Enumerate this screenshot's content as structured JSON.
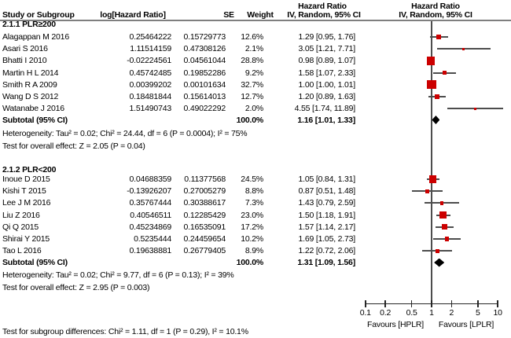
{
  "figure": {
    "header": {
      "hazard_ratio_col_title": "Hazard Ratio",
      "hazard_ratio_plot_title": "Hazard Ratio",
      "study": "Study or Subgroup",
      "loghr": "log[Hazard Ratio]",
      "se": "SE",
      "weight": "Weight",
      "ci": "IV, Random, 95% CI",
      "ci_plot": "IV, Random, 95% CI"
    }
  },
  "chart_data": {
    "type": "forest",
    "effect_measure": "Hazard Ratio",
    "model": "IV, Random, 95% CI",
    "axis": {
      "scale": "log",
      "min": 0.1,
      "max": 10,
      "ticks": [
        0.1,
        0.2,
        0.5,
        1,
        2,
        5,
        10
      ],
      "tick_labels": [
        "0.1",
        "0.2",
        "0.5",
        "1",
        "2",
        "5",
        "10"
      ],
      "favours_left": "Favours [HPLR]",
      "favours_right": "Favours [LPLR]"
    },
    "groups": [
      {
        "label": "2.1.1 PLR≥200",
        "studies": [
          {
            "name": "Alagappan M 2016",
            "loghr": "0.25464222",
            "se": "0.15729773",
            "weight": "12.6%",
            "weight_val": 12.6,
            "ci_text": "1.29 [0.95, 1.76]",
            "hr": 1.29,
            "lo": 0.95,
            "hi": 1.76
          },
          {
            "name": "Asari S 2016",
            "loghr": "1.11514159",
            "se": "0.47308126",
            "weight": "2.1%",
            "weight_val": 2.1,
            "ci_text": "3.05 [1.21, 7.71]",
            "hr": 3.05,
            "lo": 1.21,
            "hi": 7.71
          },
          {
            "name": "Bhatti I 2010",
            "loghr": "-0.02224561",
            "se": "0.04561044",
            "weight": "28.8%",
            "weight_val": 28.8,
            "ci_text": "0.98 [0.89, 1.07]",
            "hr": 0.98,
            "lo": 0.89,
            "hi": 1.07
          },
          {
            "name": "Martin H L 2014",
            "loghr": "0.45742485",
            "se": "0.19852286",
            "weight": "9.2%",
            "weight_val": 9.2,
            "ci_text": "1.58 [1.07, 2.33]",
            "hr": 1.58,
            "lo": 1.07,
            "hi": 2.33
          },
          {
            "name": "Smith R A 2009",
            "loghr": "0.00399202",
            "se": "0.00101634",
            "weight": "32.7%",
            "weight_val": 32.7,
            "ci_text": "1.00 [1.00, 1.01]",
            "hr": 1.0,
            "lo": 1.0,
            "hi": 1.01
          },
          {
            "name": "Wang D S 2012",
            "loghr": "0.18481844",
            "se": "0.15614013",
            "weight": "12.7%",
            "weight_val": 12.7,
            "ci_text": "1.20 [0.89, 1.63]",
            "hr": 1.2,
            "lo": 0.89,
            "hi": 1.63
          },
          {
            "name": "Watanabe J 2016",
            "loghr": "1.51490743",
            "se": "0.49022292",
            "weight": "2.0%",
            "weight_val": 2.0,
            "ci_text": "4.55 [1.74, 11.89]",
            "hr": 4.55,
            "lo": 1.74,
            "hi": 11.89
          }
        ],
        "subtotal": {
          "name": "Subtotal (95% CI)",
          "weight": "100.0%",
          "ci_text": "1.16 [1.01, 1.33]",
          "hr": 1.16,
          "lo": 1.01,
          "hi": 1.33
        },
        "heterogeneity": "Heterogeneity: Tau² = 0.02; Chi² = 24.44, df = 6 (P = 0.0004); I² = 75%",
        "overall_effect": "Test for overall effect: Z = 2.05 (P = 0.04)"
      },
      {
        "label": "2.1.2 PLR<200",
        "studies": [
          {
            "name": "Inoue D 2015",
            "loghr": "0.04688359",
            "se": "0.11377568",
            "weight": "24.5%",
            "weight_val": 24.5,
            "ci_text": "1.05 [0.84, 1.31]",
            "hr": 1.05,
            "lo": 0.84,
            "hi": 1.31
          },
          {
            "name": "Kishi T 2015",
            "loghr": "-0.13926207",
            "se": "0.27005279",
            "weight": "8.8%",
            "weight_val": 8.8,
            "ci_text": "0.87 [0.51, 1.48]",
            "hr": 0.87,
            "lo": 0.51,
            "hi": 1.48
          },
          {
            "name": "Lee J M 2016",
            "loghr": "0.35767444",
            "se": "0.30388617",
            "weight": "7.3%",
            "weight_val": 7.3,
            "ci_text": "1.43 [0.79, 2.59]",
            "hr": 1.43,
            "lo": 0.79,
            "hi": 2.59
          },
          {
            "name": "Liu Z 2016",
            "loghr": "0.40546511",
            "se": "0.12285429",
            "weight": "23.0%",
            "weight_val": 23.0,
            "ci_text": "1.50 [1.18, 1.91]",
            "hr": 1.5,
            "lo": 1.18,
            "hi": 1.91
          },
          {
            "name": "Qi Q 2015",
            "loghr": "0.45234869",
            "se": "0.16535091",
            "weight": "17.2%",
            "weight_val": 17.2,
            "ci_text": "1.57 [1.14, 2.17]",
            "hr": 1.57,
            "lo": 1.14,
            "hi": 2.17
          },
          {
            "name": "Shirai Y 2015",
            "loghr": "0.5235444",
            "se": "0.24459654",
            "weight": "10.2%",
            "weight_val": 10.2,
            "ci_text": "1.69 [1.05, 2.73]",
            "hr": 1.69,
            "lo": 1.05,
            "hi": 2.73
          },
          {
            "name": "Tao L 2016",
            "loghr": "0.19638881",
            "se": "0.26779405",
            "weight": "8.9%",
            "weight_val": 8.9,
            "ci_text": "1.22 [0.72, 2.06]",
            "hr": 1.22,
            "lo": 0.72,
            "hi": 2.06
          }
        ],
        "subtotal": {
          "name": "Subtotal (95% CI)",
          "weight": "100.0%",
          "ci_text": "1.31 [1.09, 1.56]",
          "hr": 1.31,
          "lo": 1.09,
          "hi": 1.56
        },
        "heterogeneity": "Heterogeneity: Tau² = 0.02; Chi² = 9.77, df = 6 (P = 0.13); I² = 39%",
        "overall_effect": "Test for overall effect: Z = 2.95 (P = 0.003)"
      }
    ],
    "subgroup_difference": "Test for subgroup differences: Chi² = 1.11, df = 1 (P = 0.29), I² = 10.1%",
    "colors": {
      "square": "#CC0000",
      "ci_line": "#4D4D4D",
      "diamond": "#000000",
      "rule": "#7F7F7F"
    }
  }
}
